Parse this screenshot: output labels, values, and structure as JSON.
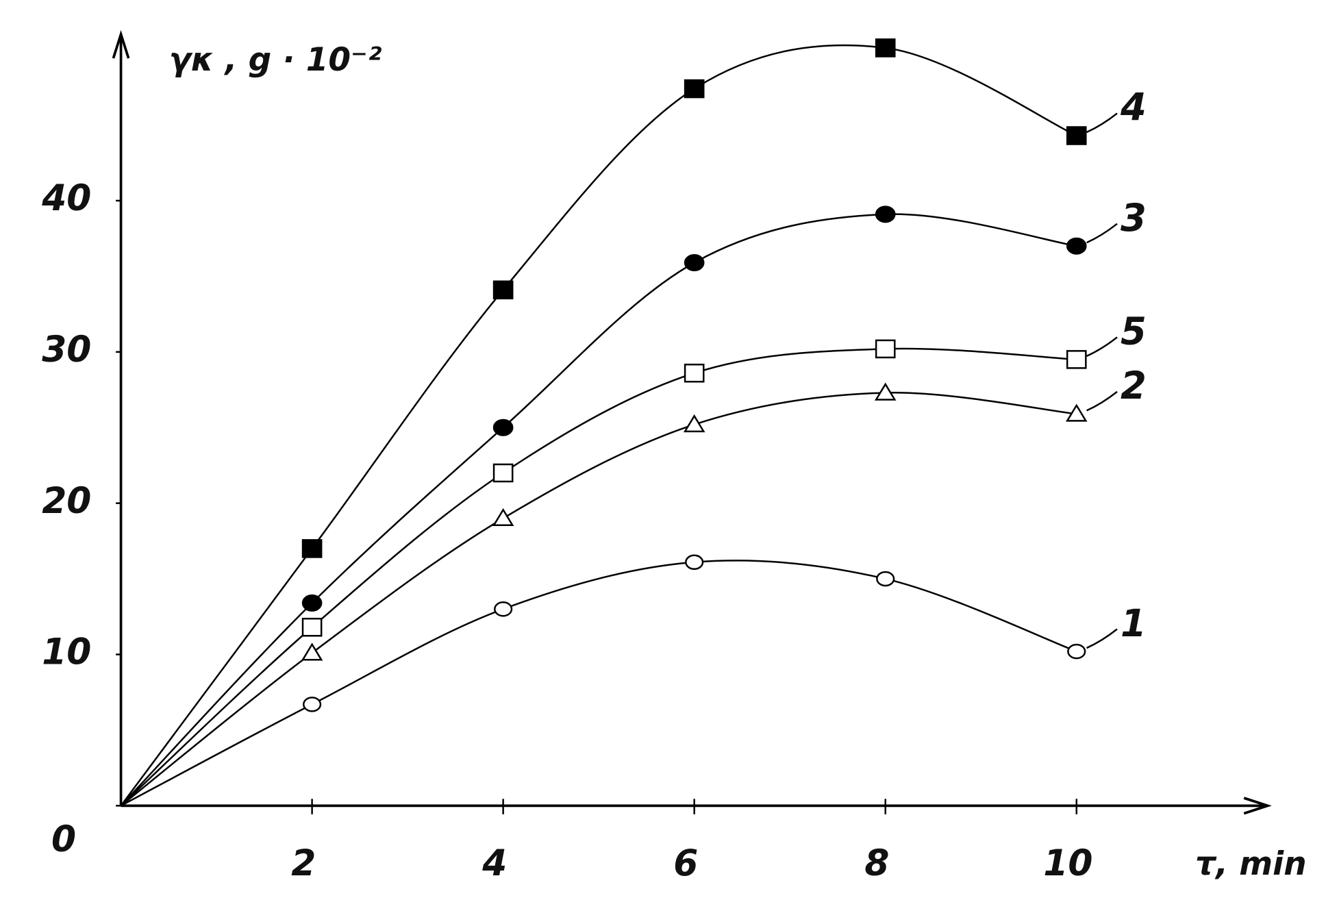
{
  "chart_data": {
    "type": "line",
    "y_label": "γκ , g · 10⁻²",
    "x_label": "τ, min",
    "x": [
      0,
      2,
      4,
      6,
      8,
      10
    ],
    "xlim": [
      0,
      12
    ],
    "ylim": [
      0,
      51
    ],
    "xticks": [
      2,
      4,
      6,
      8,
      10
    ],
    "yticks": [
      0,
      10,
      20,
      30,
      40
    ],
    "series": [
      {
        "name": "1",
        "color": "#000000",
        "marker": "circle-open",
        "values": [
          0,
          6.7,
          13.0,
          16.1,
          15.0,
          10.2
        ]
      },
      {
        "name": "2",
        "color": "#000000",
        "marker": "triangle-open",
        "values": [
          0,
          10.1,
          19.0,
          25.2,
          27.3,
          25.9
        ]
      },
      {
        "name": "3",
        "color": "#000000",
        "marker": "circle-filled",
        "values": [
          0,
          13.4,
          25.0,
          35.9,
          39.1,
          37.0
        ]
      },
      {
        "name": "4",
        "color": "#000000",
        "marker": "square-filled",
        "values": [
          0,
          17.0,
          34.1,
          47.4,
          50.1,
          44.3
        ]
      },
      {
        "name": "5",
        "color": "#000000",
        "marker": "square-open",
        "values": [
          0,
          11.8,
          22.0,
          28.6,
          30.2,
          29.5
        ]
      }
    ]
  }
}
